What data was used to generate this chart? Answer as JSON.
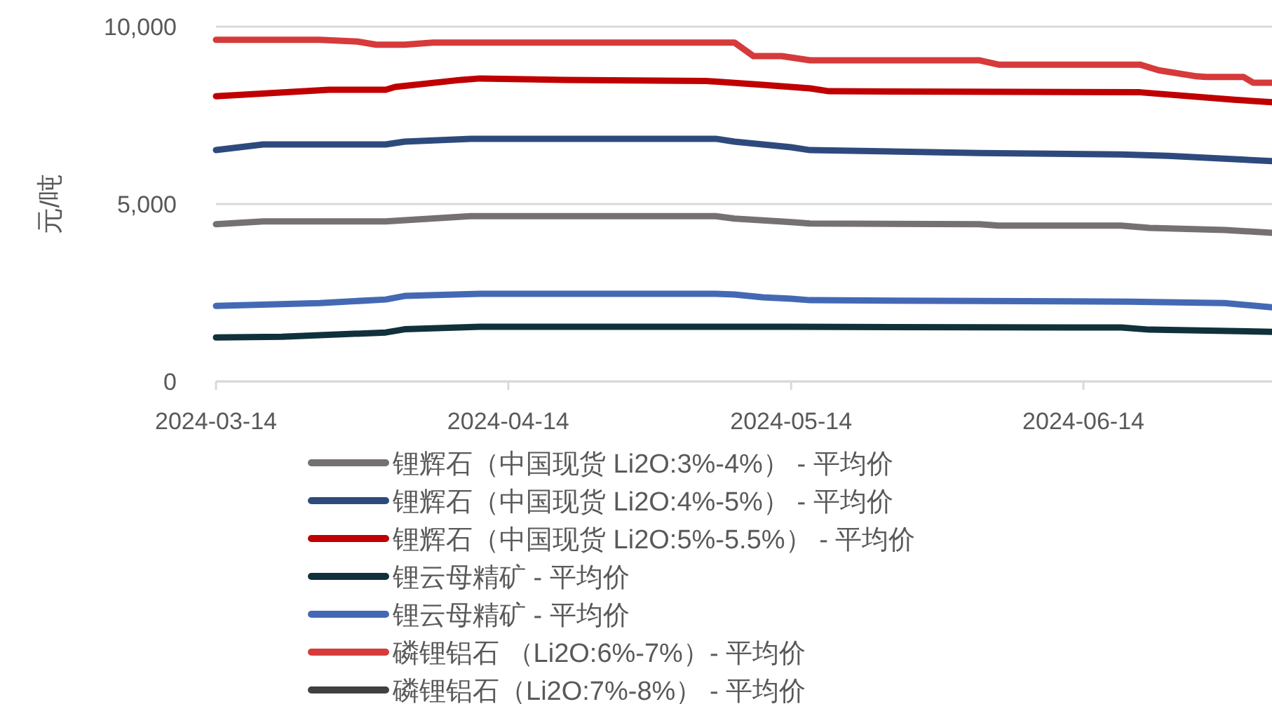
{
  "chart_data": {
    "type": "line",
    "ylabel": "元/吨",
    "xlim": [
      "2024-03-14",
      "2024-07-04"
    ],
    "xticks": [
      "2024-03-14",
      "2024-04-14",
      "2024-05-14",
      "2024-06-14"
    ],
    "ylim": [
      0,
      10000
    ],
    "yticks": [
      {
        "value": 0,
        "label": "0"
      },
      {
        "value": 5000,
        "label": "5,000"
      },
      {
        "value": 10000,
        "label": "10,000"
      }
    ],
    "grid": "y",
    "legend": "bottom",
    "line_style": "solid",
    "marker": "none",
    "series": [
      {
        "name": "锂辉石（中国现货 Li2O:3%-4%） - 平均价",
        "color": "#767171",
        "x": [
          "2024-03-14",
          "2024-03-19",
          "2024-04-01",
          "2024-04-10",
          "2024-05-06",
          "2024-05-08",
          "2024-05-14",
          "2024-05-16",
          "2024-06-03",
          "2024-06-05",
          "2024-06-18",
          "2024-06-21",
          "2024-06-29",
          "2024-07-04"
        ],
        "values": [
          4430,
          4510,
          4510,
          4660,
          4660,
          4590,
          4490,
          4450,
          4430,
          4390,
          4390,
          4330,
          4270,
          4190
        ]
      },
      {
        "name": "锂辉石（中国现货 Li2O:4%-5%） - 平均价",
        "color": "#2e4a7d",
        "x": [
          "2024-03-14",
          "2024-03-19",
          "2024-04-01",
          "2024-04-03",
          "2024-04-10",
          "2024-05-06",
          "2024-05-08",
          "2024-05-14",
          "2024-05-16",
          "2024-06-03",
          "2024-06-18",
          "2024-06-23",
          "2024-07-04"
        ],
        "values": [
          6520,
          6680,
          6680,
          6760,
          6840,
          6840,
          6760,
          6600,
          6520,
          6440,
          6400,
          6360,
          6210
        ]
      },
      {
        "name": "锂辉石（中国现货 Li2O:5%-5.5%） - 平均价",
        "color": "#c00000",
        "x": [
          "2024-03-14",
          "2024-03-26",
          "2024-04-01",
          "2024-04-02",
          "2024-04-09",
          "2024-04-11",
          "2024-04-20",
          "2024-05-05",
          "2024-05-11",
          "2024-05-16",
          "2024-05-18",
          "2024-06-20",
          "2024-06-30",
          "2024-07-04"
        ],
        "values": [
          8040,
          8220,
          8220,
          8300,
          8500,
          8540,
          8500,
          8470,
          8360,
          8260,
          8180,
          8150,
          7940,
          7870
        ]
      },
      {
        "name": "锂云母精矿 - 平均价",
        "color": "#10313b",
        "x": [
          "2024-03-14",
          "2024-03-21",
          "2024-04-01",
          "2024-04-03",
          "2024-04-11",
          "2024-05-14",
          "2024-06-18",
          "2024-06-21",
          "2024-07-04"
        ],
        "values": [
          1240,
          1260,
          1380,
          1470,
          1540,
          1540,
          1520,
          1460,
          1400
        ]
      },
      {
        "name": "锂云母精矿 - 平均价",
        "color": "#4469b4",
        "x": [
          "2024-03-14",
          "2024-03-25",
          "2024-04-01",
          "2024-04-03",
          "2024-04-11",
          "2024-05-06",
          "2024-05-08",
          "2024-05-11",
          "2024-05-14",
          "2024-05-16",
          "2024-06-19",
          "2024-06-29",
          "2024-07-04"
        ],
        "values": [
          2130,
          2210,
          2310,
          2410,
          2470,
          2470,
          2450,
          2370,
          2330,
          2290,
          2250,
          2210,
          2090
        ]
      },
      {
        "name": "磷锂铝石 （Li2O:6%-7%）- 平均价",
        "color": "#d63a3a",
        "x": [
          "2024-03-14",
          "2024-03-25",
          "2024-03-29",
          "2024-03-31",
          "2024-04-03",
          "2024-04-06",
          "2024-05-08",
          "2024-05-10",
          "2024-05-13",
          "2024-05-16",
          "2024-06-03",
          "2024-06-05",
          "2024-06-20",
          "2024-06-22",
          "2024-06-26",
          "2024-06-27",
          "2024-07-01",
          "2024-07-02",
          "2024-07-04"
        ],
        "values": [
          9630,
          9630,
          9580,
          9490,
          9490,
          9550,
          9550,
          9170,
          9170,
          9050,
          9050,
          8930,
          8930,
          8770,
          8600,
          8580,
          8580,
          8420,
          8420
        ]
      },
      {
        "name": "磷锂铝石（Li2O:7%-8%） - 平均价",
        "color": "#404040"
      }
    ]
  }
}
